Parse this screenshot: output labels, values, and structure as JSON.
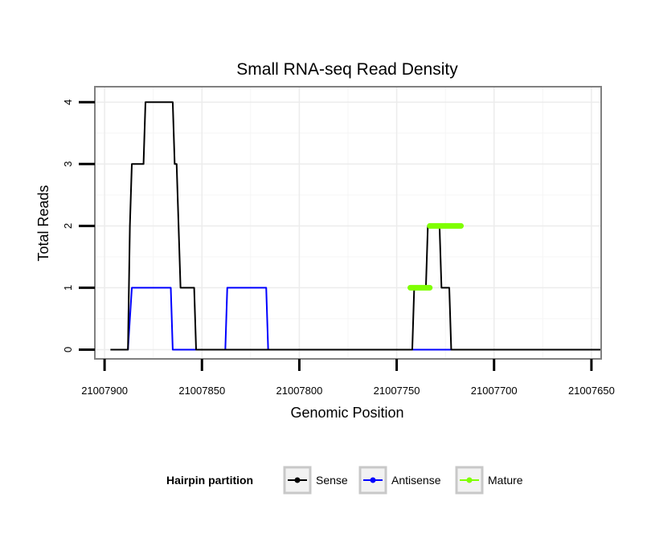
{
  "chart_data": {
    "type": "line",
    "title": "Small RNA-seq Read Density",
    "xlabel": "Genomic Position",
    "ylabel": "Total Reads",
    "x_reversed": true,
    "xlim": [
      21007905,
      21007645
    ],
    "ylim": [
      -0.15,
      4.25
    ],
    "x_ticks": [
      21007900,
      21007850,
      21007800,
      21007750,
      21007700,
      21007650
    ],
    "x_tick_labels": [
      "21007900",
      "21007850",
      "21007800",
      "21007750",
      "21007700",
      "21007650"
    ],
    "y_ticks": [
      0,
      1,
      2,
      3,
      4
    ],
    "y_tick_labels": [
      "0",
      "1",
      "2",
      "3",
      "4"
    ],
    "grid": true,
    "legend": {
      "title": "Hairpin partition",
      "position": "bottom",
      "entries": [
        "Sense",
        "Antisense",
        "Mature"
      ]
    },
    "series": [
      {
        "name": "Sense",
        "color": "#000000",
        "x": [
          21007897,
          21007888,
          21007887,
          21007886,
          21007880,
          21007879,
          21007865,
          21007864,
          21007863,
          21007862,
          21007861,
          21007854,
          21007853,
          21007847,
          21007842,
          21007742,
          21007741,
          21007735,
          21007734,
          21007728,
          21007727,
          21007723,
          21007722,
          21007713,
          21007645
        ],
        "y": [
          0,
          0,
          2,
          3,
          3,
          4,
          4,
          3,
          3,
          2,
          1,
          1,
          0,
          0,
          0,
          0,
          1,
          1,
          2,
          2,
          1,
          1,
          0,
          0,
          0
        ]
      },
      {
        "name": "Antisense",
        "color": "#0000ff",
        "x": [
          21007890,
          21007888,
          21007886,
          21007866,
          21007865,
          21007838,
          21007837,
          21007817,
          21007816,
          21007645
        ],
        "y": [
          0,
          0,
          1,
          1,
          0,
          0,
          1,
          1,
          0,
          0
        ]
      },
      {
        "name": "Mature",
        "color": "#7fff00",
        "segments": [
          {
            "x": [
              21007743,
              21007733
            ],
            "y": [
              1,
              1
            ]
          },
          {
            "x": [
              21007733,
              21007717
            ],
            "y": [
              2,
              2
            ]
          }
        ]
      }
    ]
  }
}
